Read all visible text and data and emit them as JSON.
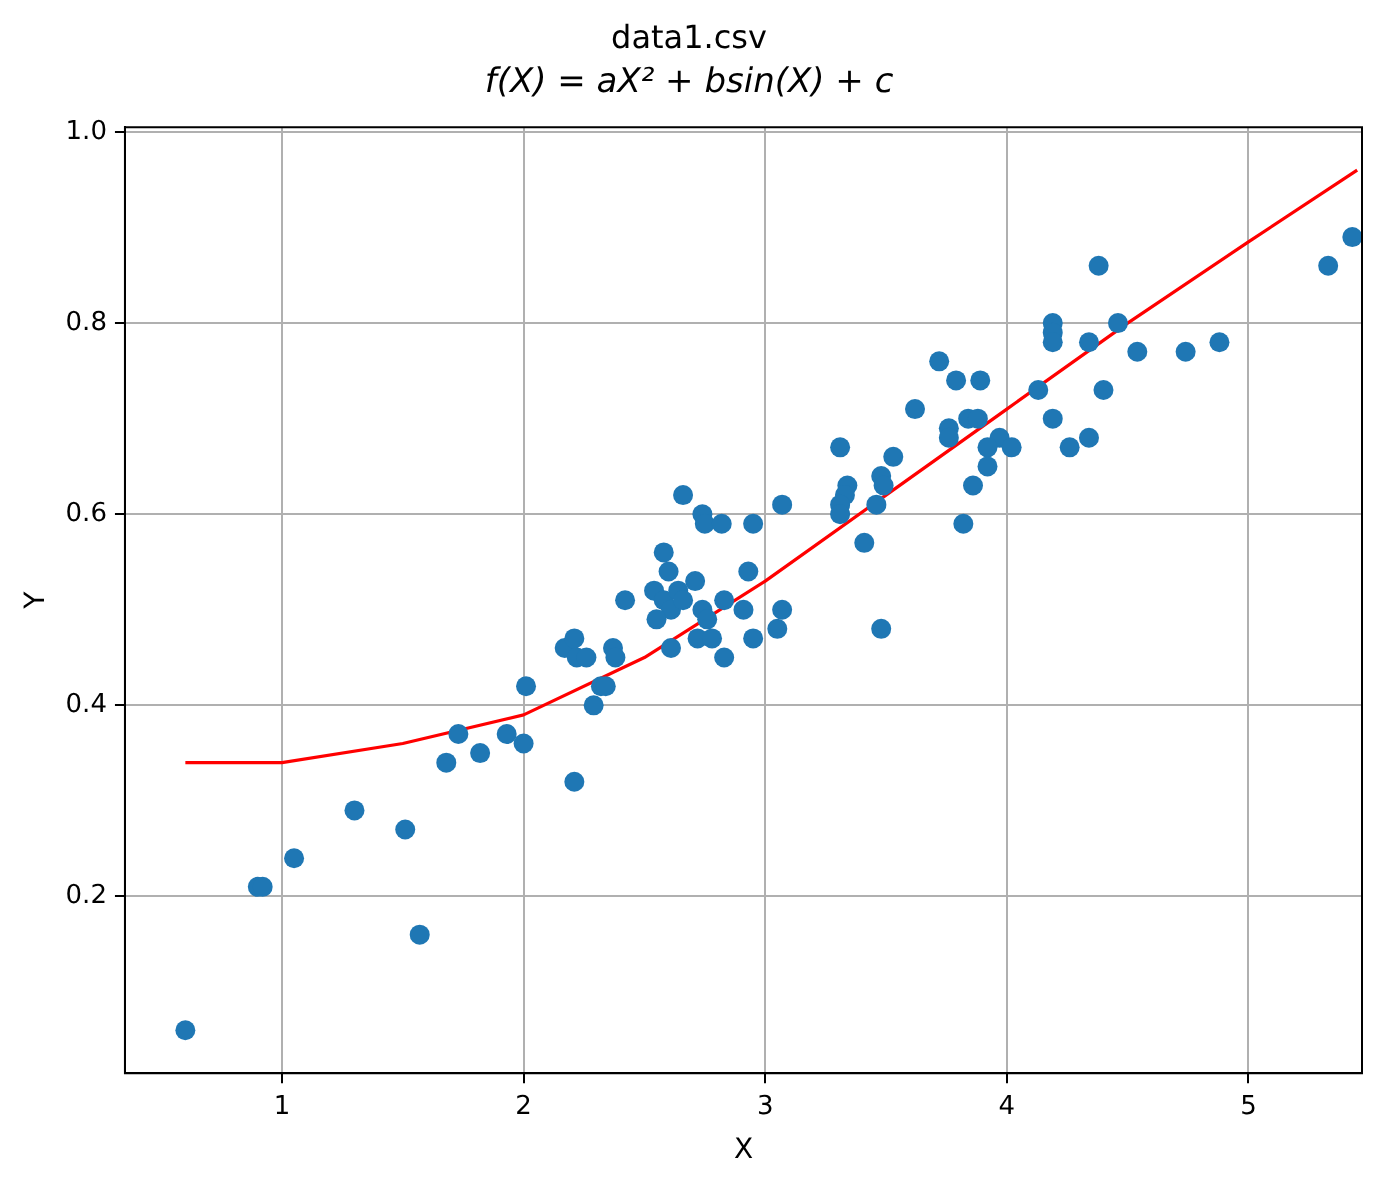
{
  "chart_data": {
    "type": "scatter",
    "title": "data1.csv",
    "subtitle": "f(X) = aX² + bsin(X) + c",
    "xlabel": "X",
    "ylabel": "Y",
    "xlim": [
      0.35,
      5.47
    ],
    "xticks": [
      1,
      2,
      3,
      4,
      5
    ],
    "ylim": [
      0.015,
      1.005
    ],
    "yticks": [
      {
        "value": 0.2,
        "label": "0.2"
      },
      {
        "value": 0.4,
        "label": "0.4"
      },
      {
        "value": 0.6,
        "label": "0.6"
      },
      {
        "value": 0.8,
        "label": "0.8"
      },
      {
        "value": 1,
        "label": "1.0"
      }
    ],
    "grid": true,
    "legend": false,
    "marker": "circle",
    "series": [
      {
        "color": "#1f77b4",
        "x": [
          0.6,
          0.9,
          0.92,
          1.05,
          1.3,
          1.51,
          1.57,
          1.68,
          1.73,
          1.82,
          1.93,
          2.0,
          2.01,
          2.21,
          2.17,
          2.21,
          2.22,
          2.26,
          2.37,
          2.38,
          2.29,
          2.32,
          2.34,
          2.42,
          2.66,
          2.74,
          2.75,
          2.82,
          2.95,
          3.07,
          2.58,
          2.6,
          2.54,
          2.58,
          2.61,
          2.55,
          2.71,
          2.64,
          2.66,
          2.74,
          2.76,
          2.83,
          2.93,
          2.91,
          3.07,
          3.05,
          2.95,
          2.83,
          2.72,
          2.78,
          2.61,
          4.38,
          5.33,
          5.43,
          4.19,
          4.19,
          4.19,
          4.34,
          4.46,
          4.54,
          4.74,
          4.88,
          3.72,
          3.79,
          3.89,
          4.13,
          4.4,
          3.62,
          3.76,
          3.76,
          3.84,
          3.88,
          4.19,
          3.97,
          4.02,
          4.26,
          4.34,
          3.92,
          3.92,
          3.86,
          3.53,
          3.31,
          3.34,
          3.33,
          3.48,
          3.49,
          3.46,
          3.31,
          3.31,
          3.41,
          3.82,
          3.48
        ],
        "values": [
          0.06,
          0.21,
          0.21,
          0.24,
          0.29,
          0.27,
          0.16,
          0.34,
          0.37,
          0.35,
          0.37,
          0.36,
          0.42,
          0.32,
          0.46,
          0.47,
          0.45,
          0.45,
          0.46,
          0.45,
          0.4,
          0.42,
          0.42,
          0.51,
          0.62,
          0.6,
          0.59,
          0.59,
          0.59,
          0.61,
          0.56,
          0.54,
          0.52,
          0.51,
          0.5,
          0.49,
          0.53,
          0.52,
          0.51,
          0.5,
          0.49,
          0.51,
          0.54,
          0.5,
          0.5,
          0.48,
          0.47,
          0.45,
          0.47,
          0.47,
          0.46,
          0.86,
          0.86,
          0.89,
          0.8,
          0.79,
          0.78,
          0.78,
          0.8,
          0.77,
          0.77,
          0.78,
          0.76,
          0.74,
          0.74,
          0.73,
          0.73,
          0.71,
          0.69,
          0.68,
          0.7,
          0.7,
          0.7,
          0.68,
          0.67,
          0.67,
          0.68,
          0.67,
          0.65,
          0.63,
          0.66,
          0.67,
          0.63,
          0.62,
          0.64,
          0.63,
          0.61,
          0.61,
          0.6,
          0.57,
          0.59,
          0.48
        ]
      },
      {
        "type": "line",
        "color": "#ff0000",
        "marker": "none",
        "line_style": "solid",
        "x": [
          0.6,
          1.0,
          1.5,
          2.0,
          2.5,
          3.0,
          3.5,
          4.0,
          4.5,
          5.0,
          5.45
        ],
        "values": [
          0.34,
          0.34,
          0.36,
          0.39,
          0.45,
          0.53,
          0.62,
          0.71,
          0.8,
          0.885,
          0.96
        ]
      }
    ]
  }
}
